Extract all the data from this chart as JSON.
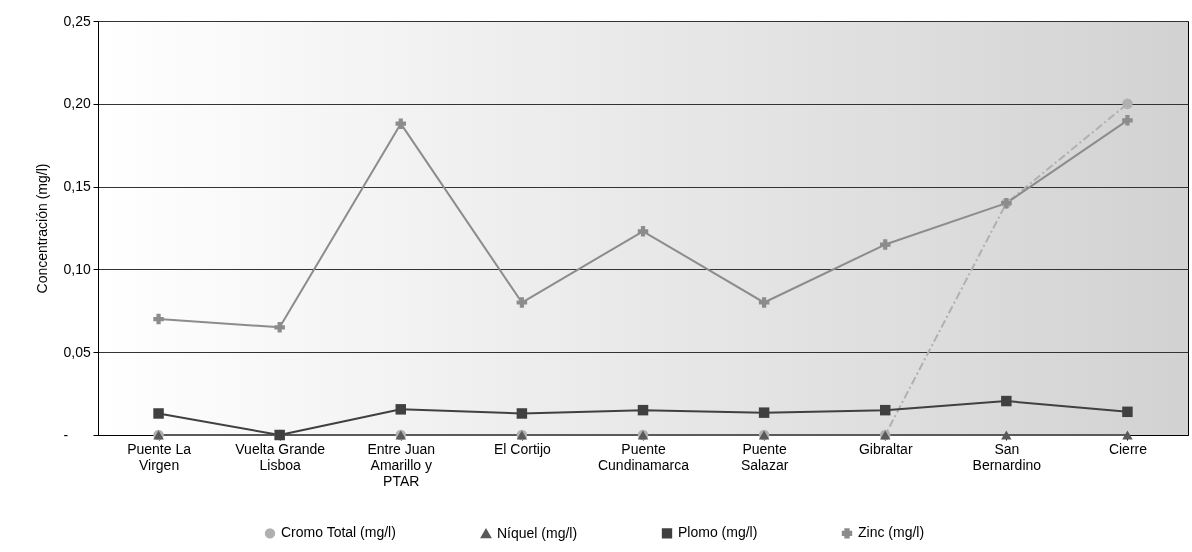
{
  "chart_data": {
    "type": "line",
    "ylabel": "Concentración (mg/l)",
    "categories": [
      "Puente La Virgen",
      "Vuelta Grande Lisboa",
      "Entre Juan Amarillo y PTAR",
      "El Cortijo",
      "Puente Cundinamarca",
      "Puente Salazar",
      "Gibraltar",
      "San Bernardino",
      "Cierre"
    ],
    "series": [
      {
        "name": "Cromo Total (mg/l)",
        "color": "#b0b0b0",
        "marker": "circle",
        "line_style": "dashed",
        "values": [
          0,
          0,
          0,
          0,
          0,
          0,
          0,
          0.14,
          0.2
        ]
      },
      {
        "name": "Níquel (mg/l)",
        "color": "#5a5a5a",
        "marker": "triangle",
        "line_style": "solid",
        "values": [
          0,
          0,
          0,
          0,
          0,
          0,
          0,
          0,
          0
        ]
      },
      {
        "name": "Plomo (mg/l)",
        "color": "#404040",
        "marker": "square",
        "line_style": "solid",
        "values": [
          0.013,
          0,
          0.0155,
          0.013,
          0.015,
          0.0135,
          0.015,
          0.0205,
          0.014
        ]
      },
      {
        "name": "Zinc (mg/l)",
        "color": "#8c8c8c",
        "marker": "cross",
        "line_style": "solid",
        "values": [
          0.07,
          0.065,
          0.188,
          0.08,
          0.123,
          0.08,
          0.115,
          0.14,
          0.19
        ]
      }
    ],
    "ylim": [
      0,
      0.25
    ],
    "yticks": [
      {
        "value": 0,
        "label": "-"
      },
      {
        "value": 0.05,
        "label": "0,05"
      },
      {
        "value": 0.1,
        "label": "0,10"
      },
      {
        "value": 0.15,
        "label": "0,15"
      },
      {
        "value": 0.2,
        "label": "0,20"
      },
      {
        "value": 0.25,
        "label": "0,25"
      }
    ],
    "grid": "y",
    "legend": "bottom"
  }
}
